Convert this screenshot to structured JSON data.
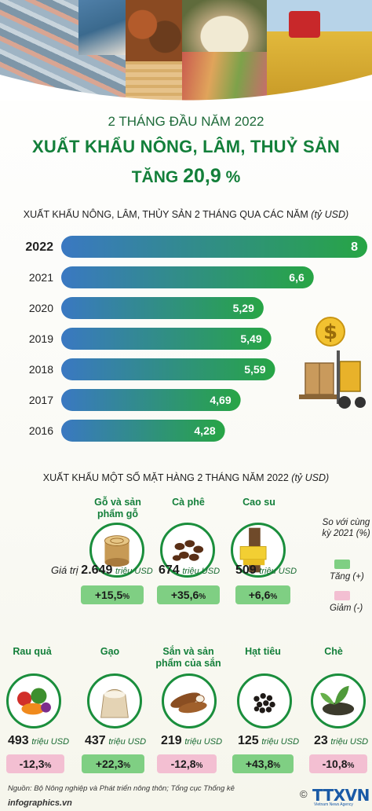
{
  "header": {
    "line1": "2 THÁNG ĐẦU NĂM 2022",
    "line2": "XUẤT KHẨU NÔNG, LÂM, THUỶ SẢN",
    "line3_prefix": "TĂNG ",
    "line3_value": "20,9",
    "line3_suffix": " %"
  },
  "section1": {
    "title": "XUẤT KHẨU NÔNG, LÂM, THỦY SẢN 2 THÁNG QUA CÁC NĂM",
    "unit": "(tỷ USD)"
  },
  "chart_data": {
    "type": "bar",
    "orientation": "horizontal",
    "categories": [
      "2022",
      "2021",
      "2020",
      "2019",
      "2018",
      "2017",
      "2016"
    ],
    "values": [
      8,
      6.6,
      5.29,
      5.49,
      5.59,
      4.69,
      4.28
    ],
    "value_labels": [
      "8",
      "6,6",
      "5,29",
      "5,49",
      "5,59",
      "4,69",
      "4,28"
    ],
    "title": "XUẤT KHẨU NÔNG, LÂM, THỦY SẢN 2 THÁNG QUA CÁC NĂM",
    "unit": "tỷ USD",
    "xlim": [
      0,
      8
    ],
    "grid": false,
    "colors": {
      "start": "#3a78c2",
      "end": "#27a545"
    }
  },
  "section2": {
    "title": "XUẤT KHẨU MỘT SỐ MẶT HÀNG 2 THÁNG NĂM 2022",
    "unit": "(tỷ USD)"
  },
  "legend": {
    "title": "So với cùng kỳ 2021 (%)",
    "up_label": "Tăng (+)",
    "down_label": "Giảm (-)",
    "up_color": "#7fcf83",
    "down_color": "#f3bfd2"
  },
  "products": {
    "value_prefix": "Giá trị",
    "unit": "triệu USD",
    "items": [
      {
        "name": "Gỗ và sản phẩm gỗ",
        "value": "2.649",
        "change": "+15,5",
        "direction": "up",
        "icon": "wood-icon"
      },
      {
        "name": "Cà phê",
        "value": "674",
        "change": "+35,6",
        "direction": "up",
        "icon": "coffee-icon"
      },
      {
        "name": "Cao su",
        "value": "509",
        "change": "+6,6",
        "direction": "up",
        "icon": "rubber-icon"
      },
      {
        "name": "Rau quả",
        "value": "493",
        "change": "-12,3",
        "direction": "down",
        "icon": "vegetables-icon"
      },
      {
        "name": "Gạo",
        "value": "437",
        "change": "+22,3",
        "direction": "up",
        "icon": "rice-icon"
      },
      {
        "name": "Sắn và sản phẩm của sắn",
        "value": "219",
        "change": "-12,8",
        "direction": "down",
        "icon": "cassava-icon"
      },
      {
        "name": "Hạt tiêu",
        "value": "125",
        "change": "+43,8",
        "direction": "up",
        "icon": "pepper-icon"
      },
      {
        "name": "Chè",
        "value": "23",
        "change": "-10,8",
        "direction": "down",
        "icon": "tea-icon"
      }
    ]
  },
  "footer": {
    "source_label": "Nguồn:",
    "source_text": " Bộ Nông nghiệp và Phát triển nông thôn; Tổng cục Thống kê",
    "site": "infographics.vn",
    "logo_text": "TTXVN",
    "logo_sub": "Vietnam News Agency",
    "copyright": "©"
  }
}
